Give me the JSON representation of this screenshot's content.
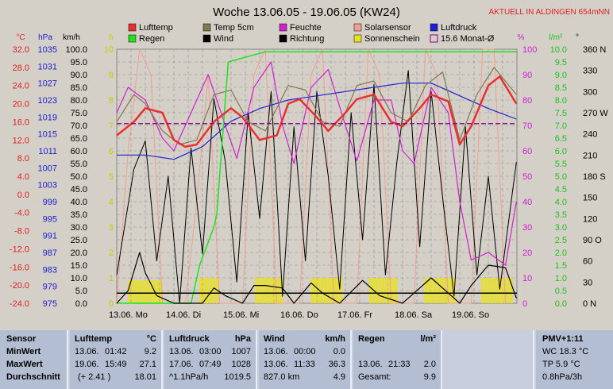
{
  "title": "Woche 13.06.05 - 19.06.05 (KW24)",
  "notice": "AKTUELL IN ALDINGEN 654mNN",
  "colors": {
    "lufttemp": "#e83030",
    "temp5cm": "#807850",
    "feuchte": "#d020d0",
    "solar": "#f0a090",
    "luftdruck": "#2020d0",
    "regen": "#20e020",
    "wind": "#000000",
    "richtung": "#000000",
    "sonne": "#e8e020",
    "monat": "#800080",
    "bg": "#d4d0c8"
  },
  "legend": [
    {
      "label": "Lufttemp",
      "color": "#e83030",
      "kind": "box"
    },
    {
      "label": "Temp 5cm",
      "color": "#807850",
      "kind": "box"
    },
    {
      "label": "Feuchte",
      "color": "#d020d0",
      "kind": "box"
    },
    {
      "label": "Solarsensor",
      "color": "#f0a090",
      "kind": "box"
    },
    {
      "label": "Luftdruck",
      "color": "#2020d0",
      "kind": "box"
    },
    {
      "label": "Regen",
      "color": "#20e020",
      "kind": "box"
    },
    {
      "label": "Wind",
      "color": "#000000",
      "kind": "box"
    },
    {
      "label": "Richtung",
      "color": "#000000",
      "kind": "box"
    },
    {
      "label": "Sonnenschein",
      "color": "#e8e020",
      "kind": "box"
    },
    {
      "label": "15.6 Monat-Ø",
      "color": "#800080",
      "kind": "outline"
    }
  ],
  "axis_units": {
    "temp": "°C",
    "hpa": "hPa",
    "kmh": "km/h",
    "h": "h",
    "pct": "%",
    "rain": "l/m²",
    "deg": "°"
  },
  "chart_data": {
    "type": "line",
    "x_ticks": [
      "13.06. Mo",
      "14.06. Di",
      "15.06. Mi",
      "16.06. Do",
      "17.06. Fr",
      "18.06. Sa",
      "19.06. So"
    ],
    "axes": {
      "temp": {
        "ticks": [
          32.0,
          28.0,
          24.0,
          20.0,
          16.0,
          12.0,
          8.0,
          4.0,
          0.0,
          -4.0,
          -8.0,
          -12.0,
          -16.0,
          -20.0,
          -24.0
        ],
        "ylim": [
          -24,
          32
        ],
        "unit": "°C"
      },
      "pressure": {
        "ticks": [
          1035,
          1031,
          1027,
          1023,
          1019,
          1015,
          1011,
          1007,
          1003,
          999,
          995,
          991,
          987,
          983,
          979,
          975
        ],
        "ylim": [
          975,
          1035
        ],
        "unit": "hPa"
      },
      "wind": {
        "ticks": [
          100.0,
          95.0,
          90.0,
          85.0,
          80.0,
          75.0,
          70.0,
          65.0,
          60.0,
          55.0,
          50.0,
          45.0,
          40.0,
          35.0,
          30.0,
          25.0,
          20.0,
          15.0,
          10.0,
          5.0,
          0.0
        ],
        "ylim": [
          0,
          100
        ],
        "unit": "km/h"
      },
      "sun": {
        "ticks": [
          10,
          9,
          8,
          7,
          6,
          5,
          4,
          3,
          2,
          1,
          0
        ],
        "ylim": [
          0,
          10
        ],
        "unit": "h"
      },
      "humidity": {
        "ticks": [
          100,
          90,
          80,
          70,
          60,
          50,
          40,
          30,
          20,
          10,
          0
        ],
        "ylim": [
          0,
          100
        ],
        "unit": "%"
      },
      "rain": {
        "ticks": [
          10.0,
          9.5,
          9.0,
          8.5,
          8.0,
          7.5,
          7.0,
          6.5,
          6.0,
          5.5,
          5.0,
          4.5,
          4.0,
          3.5,
          3.0,
          2.5,
          2.0,
          1.5,
          1.0,
          0.5,
          0.0
        ],
        "ylim": [
          0,
          10
        ],
        "unit": "l/m²"
      },
      "direction": {
        "ticks": [
          "360 N",
          "330",
          "300",
          "270 W",
          "240",
          "210",
          "180 S",
          "150",
          "120",
          "90 O",
          "60",
          "30",
          "0 N"
        ],
        "ylim": [
          0,
          360
        ],
        "unit": "°"
      }
    },
    "series": [
      {
        "name": "Lufttemp",
        "unit": "°C",
        "points": [
          [
            0,
            13
          ],
          [
            0.3,
            16
          ],
          [
            0.5,
            19
          ],
          [
            0.8,
            18
          ],
          [
            1.0,
            12
          ],
          [
            1.2,
            10.5
          ],
          [
            1.4,
            11
          ],
          [
            1.7,
            16
          ],
          [
            2.0,
            19
          ],
          [
            2.2,
            17
          ],
          [
            2.5,
            12
          ],
          [
            2.8,
            13
          ],
          [
            3.0,
            20
          ],
          [
            3.2,
            21
          ],
          [
            3.5,
            17
          ],
          [
            3.7,
            14
          ],
          [
            4.0,
            18
          ],
          [
            4.2,
            21
          ],
          [
            4.5,
            22
          ],
          [
            4.8,
            16
          ],
          [
            5.0,
            15
          ],
          [
            5.3,
            19
          ],
          [
            5.5,
            22
          ],
          [
            5.8,
            20.5
          ],
          [
            6.0,
            11
          ],
          [
            6.2,
            15
          ],
          [
            6.5,
            24
          ],
          [
            6.7,
            26
          ],
          [
            6.99,
            20
          ]
        ]
      },
      {
        "name": "Temp 5cm",
        "unit": "°C",
        "points": [
          [
            0,
            16
          ],
          [
            0.3,
            22
          ],
          [
            0.5,
            20
          ],
          [
            0.8,
            14
          ],
          [
            1.1,
            11
          ],
          [
            1.4,
            12
          ],
          [
            1.7,
            22
          ],
          [
            2.0,
            23
          ],
          [
            2.3,
            16
          ],
          [
            2.6,
            14
          ],
          [
            3.0,
            24
          ],
          [
            3.3,
            23
          ],
          [
            3.6,
            16
          ],
          [
            3.9,
            15
          ],
          [
            4.2,
            24
          ],
          [
            4.5,
            25
          ],
          [
            4.8,
            18
          ],
          [
            5.1,
            16
          ],
          [
            5.4,
            24
          ],
          [
            5.7,
            27
          ],
          [
            6.0,
            12
          ],
          [
            6.3,
            22
          ],
          [
            6.6,
            28
          ],
          [
            6.99,
            22
          ]
        ]
      },
      {
        "name": "Luftdruck",
        "unit": "hPa",
        "points": [
          [
            0,
            1010
          ],
          [
            0.5,
            1010
          ],
          [
            1.0,
            1009
          ],
          [
            1.5,
            1012
          ],
          [
            2.0,
            1018
          ],
          [
            2.5,
            1021
          ],
          [
            3.0,
            1023
          ],
          [
            3.5,
            1024
          ],
          [
            4.0,
            1025
          ],
          [
            4.5,
            1026
          ],
          [
            5.0,
            1027
          ],
          [
            5.5,
            1027
          ],
          [
            6.0,
            1024
          ],
          [
            6.5,
            1021
          ],
          [
            6.99,
            1018.5
          ]
        ]
      },
      {
        "name": "Feuchte",
        "unit": "%",
        "points": [
          [
            0,
            75
          ],
          [
            0.2,
            85
          ],
          [
            0.5,
            80
          ],
          [
            0.8,
            65
          ],
          [
            1.0,
            60
          ],
          [
            1.3,
            75
          ],
          [
            1.6,
            90
          ],
          [
            1.9,
            70
          ],
          [
            2.1,
            57
          ],
          [
            2.4,
            85
          ],
          [
            2.7,
            95
          ],
          [
            2.9,
            70
          ],
          [
            3.1,
            55
          ],
          [
            3.4,
            85
          ],
          [
            3.7,
            92
          ],
          [
            4.0,
            70
          ],
          [
            4.2,
            56
          ],
          [
            4.5,
            80
          ],
          [
            4.8,
            80
          ],
          [
            5.0,
            60
          ],
          [
            5.2,
            55
          ],
          [
            5.5,
            85
          ],
          [
            5.8,
            75
          ],
          [
            6.0,
            40
          ],
          [
            6.2,
            17
          ],
          [
            6.5,
            20
          ],
          [
            6.8,
            15
          ],
          [
            6.99,
            40
          ]
        ]
      },
      {
        "name": "Regen",
        "unit": "l/m²",
        "points": [
          [
            0,
            0
          ],
          [
            1.3,
            0
          ],
          [
            1.45,
            1.5
          ],
          [
            1.7,
            3
          ],
          [
            1.75,
            3.5
          ],
          [
            1.95,
            9.5
          ],
          [
            2.6,
            9.9
          ],
          [
            3.6,
            9.9
          ],
          [
            3.61,
            9.9
          ],
          [
            6.99,
            9.9
          ]
        ]
      },
      {
        "name": "Wind",
        "unit": "km/h",
        "points": [
          [
            0,
            0
          ],
          [
            0.2,
            5
          ],
          [
            0.4,
            20
          ],
          [
            0.5,
            12
          ],
          [
            0.7,
            3
          ],
          [
            1.0,
            0
          ],
          [
            1.5,
            0
          ],
          [
            1.7,
            6
          ],
          [
            1.9,
            3
          ],
          [
            2.2,
            0
          ],
          [
            2.4,
            7
          ],
          [
            2.6,
            7
          ],
          [
            2.9,
            6
          ],
          [
            3.1,
            0
          ],
          [
            3.4,
            8
          ],
          [
            3.6,
            4
          ],
          [
            3.9,
            0
          ],
          [
            4.3,
            9
          ],
          [
            4.6,
            3
          ],
          [
            5.0,
            0
          ],
          [
            5.2,
            4
          ],
          [
            5.5,
            10
          ],
          [
            5.8,
            4
          ],
          [
            6.0,
            0
          ],
          [
            6.2,
            7
          ],
          [
            6.5,
            15
          ],
          [
            6.8,
            14
          ],
          [
            6.99,
            2
          ]
        ]
      },
      {
        "name": "Richtung",
        "unit": "°",
        "points": [
          [
            0,
            40
          ],
          [
            0.3,
            190
          ],
          [
            0.5,
            230
          ],
          [
            0.7,
            60
          ],
          [
            0.9,
            180
          ],
          [
            1.1,
            0
          ],
          [
            1.3,
            220
          ],
          [
            1.5,
            70
          ],
          [
            1.7,
            290
          ],
          [
            1.9,
            200
          ],
          [
            2.1,
            30
          ],
          [
            2.3,
            270
          ],
          [
            2.5,
            120
          ],
          [
            2.7,
            300
          ],
          [
            2.9,
            10
          ],
          [
            3.1,
            250
          ],
          [
            3.3,
            60
          ],
          [
            3.5,
            300
          ],
          [
            3.7,
            180
          ],
          [
            3.9,
            20
          ],
          [
            4.1,
            270
          ],
          [
            4.3,
            90
          ],
          [
            4.5,
            310
          ],
          [
            4.7,
            40
          ],
          [
            4.9,
            200
          ],
          [
            5.1,
            330
          ],
          [
            5.3,
            80
          ],
          [
            5.5,
            300
          ],
          [
            5.7,
            150
          ],
          [
            5.9,
            10
          ],
          [
            6.1,
            250
          ],
          [
            6.3,
            40
          ],
          [
            6.5,
            180
          ],
          [
            6.7,
            20
          ],
          [
            6.99,
            200
          ]
        ]
      },
      {
        "name": "Solarsensor",
        "unit": "h",
        "points": [
          [
            0,
            0
          ],
          [
            0.2,
            6
          ],
          [
            0.4,
            10
          ],
          [
            0.6,
            9
          ],
          [
            0.8,
            0
          ],
          [
            1.2,
            0
          ],
          [
            1.4,
            4
          ],
          [
            1.6,
            9
          ],
          [
            1.8,
            0
          ],
          [
            2.2,
            0
          ],
          [
            2.4,
            9
          ],
          [
            2.6,
            10
          ],
          [
            2.8,
            0
          ],
          [
            3.2,
            0
          ],
          [
            3.4,
            9
          ],
          [
            3.6,
            10
          ],
          [
            3.8,
            0
          ],
          [
            4.2,
            0
          ],
          [
            4.4,
            10
          ],
          [
            4.6,
            9
          ],
          [
            4.8,
            0
          ],
          [
            5.2,
            0
          ],
          [
            5.4,
            10
          ],
          [
            5.6,
            9
          ],
          [
            5.8,
            0
          ],
          [
            6.2,
            0
          ],
          [
            6.4,
            10
          ],
          [
            6.6,
            10
          ],
          [
            6.8,
            0
          ]
        ]
      }
    ],
    "sunshine_bars": {
      "unit": "h",
      "days": [
        [
          0.2,
          0.8,
          0.9
        ],
        [
          1.45,
          1.75,
          1.0
        ],
        [
          2.42,
          2.9,
          1.0
        ],
        [
          3.4,
          3.9,
          1.0
        ],
        [
          4.42,
          4.9,
          1.0
        ],
        [
          5.38,
          5.9,
          1.0
        ],
        [
          6.38,
          6.9,
          1.0
        ]
      ]
    },
    "month_avg": {
      "value": 15.6,
      "unit": "°C"
    },
    "zero_line": {
      "value": 4.0,
      "unit": "km/h"
    }
  },
  "table": {
    "sensor": {
      "head": "Sensor",
      "rows": [
        "MinWert",
        "MaxWert",
        "Durchschnitt"
      ]
    },
    "lufttemp": {
      "head": "Lufttemp",
      "unit": "°C",
      "rows": [
        [
          "13.06.",
          "01:42",
          "9.2"
        ],
        [
          "19.06.",
          "15:49",
          "27.1"
        ],
        [
          "(+ 2.41 )",
          "",
          "18.01"
        ]
      ]
    },
    "luftdruck": {
      "head": "Luftdruck",
      "unit": "hPa",
      "rows": [
        [
          "13.06.",
          "03:00",
          "1007"
        ],
        [
          "17.06.",
          "07:49",
          "1028"
        ],
        [
          "^1.1hPa/h",
          "",
          "1019.5"
        ]
      ]
    },
    "wind": {
      "head": "Wind",
      "unit": "km/h",
      "rows": [
        [
          "13.06.",
          "00:00",
          "0.0"
        ],
        [
          "13.06.",
          "11:33",
          "36.3"
        ],
        [
          "827.0 km",
          "",
          "4.9"
        ]
      ]
    },
    "regen": {
      "head": "Regen",
      "unit": "l/m²",
      "rows": [
        [
          "",
          "",
          ""
        ],
        [
          "13.06.",
          "21:33",
          "2.0"
        ],
        [
          "Gesamt:",
          "",
          "9.9"
        ]
      ]
    },
    "pmv": {
      "head": "PMV+1:11",
      "rows": [
        "WC 18.3 °C",
        "TP 5.9 °C",
        "0.8hPa/3h"
      ]
    }
  }
}
